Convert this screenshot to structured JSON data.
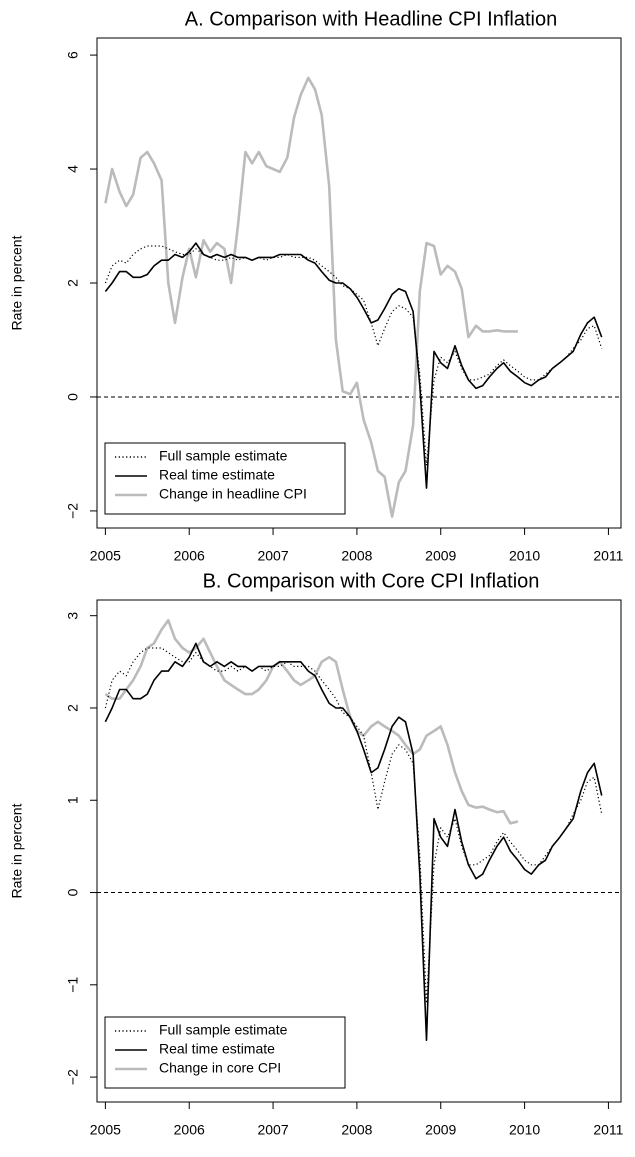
{
  "chart_data": [
    {
      "type": "line",
      "title": "A. Comparison with Headline CPI Inflation",
      "y_label": "Rate in percent",
      "xlim": [
        2004.9,
        2011.15
      ],
      "ylim": [
        -2.3,
        6.3
      ],
      "xticks": [
        2005,
        2006,
        2007,
        2008,
        2009,
        2010,
        2011
      ],
      "yticks": [
        {
          "value": -2,
          "label": "−2"
        },
        0,
        2,
        4,
        6
      ],
      "hline": 0,
      "legend": "bottom-left",
      "x": [
        2005.0,
        2005.08,
        2005.17,
        2005.25,
        2005.33,
        2005.42,
        2005.5,
        2005.58,
        2005.67,
        2005.75,
        2005.83,
        2005.92,
        2006.0,
        2006.08,
        2006.17,
        2006.25,
        2006.33,
        2006.42,
        2006.5,
        2006.58,
        2006.67,
        2006.75,
        2006.83,
        2006.92,
        2007.0,
        2007.08,
        2007.17,
        2007.25,
        2007.33,
        2007.42,
        2007.5,
        2007.58,
        2007.67,
        2007.75,
        2007.83,
        2007.92,
        2008.0,
        2008.08,
        2008.17,
        2008.25,
        2008.33,
        2008.42,
        2008.5,
        2008.58,
        2008.67,
        2008.75,
        2008.83,
        2008.92,
        2009.0,
        2009.08,
        2009.17,
        2009.25,
        2009.33,
        2009.42,
        2009.5,
        2009.58,
        2009.67,
        2009.75,
        2009.83,
        2009.92,
        2010.0,
        2010.08,
        2010.17,
        2010.25,
        2010.33,
        2010.42,
        2010.5,
        2010.58,
        2010.67,
        2010.75,
        2010.83,
        2010.92
      ],
      "series": [
        {
          "name": "Full sample estimate",
          "color": "#000000",
          "linestyle": "dotted",
          "values": [
            2.0,
            2.3,
            2.4,
            2.35,
            2.5,
            2.6,
            2.65,
            2.65,
            2.65,
            2.6,
            2.55,
            2.5,
            2.5,
            2.6,
            2.5,
            2.45,
            2.4,
            2.4,
            2.45,
            2.4,
            2.45,
            2.4,
            2.45,
            2.4,
            2.45,
            2.45,
            2.5,
            2.45,
            2.45,
            2.45,
            2.4,
            2.3,
            2.2,
            2.1,
            1.95,
            1.9,
            1.8,
            1.7,
            1.3,
            0.9,
            1.2,
            1.5,
            1.6,
            1.55,
            1.4,
            0.4,
            -1.2,
            0.3,
            0.7,
            0.6,
            0.8,
            0.5,
            0.3,
            0.3,
            0.35,
            0.4,
            0.55,
            0.65,
            0.55,
            0.45,
            0.35,
            0.3,
            0.3,
            0.4,
            0.5,
            0.6,
            0.7,
            0.85,
            1.0,
            1.2,
            1.25,
            0.85
          ]
        },
        {
          "name": "Real time estimate",
          "color": "#000000",
          "linestyle": "solid",
          "values": [
            1.85,
            2.0,
            2.2,
            2.2,
            2.1,
            2.1,
            2.15,
            2.3,
            2.4,
            2.4,
            2.5,
            2.45,
            2.55,
            2.7,
            2.5,
            2.45,
            2.5,
            2.45,
            2.5,
            2.45,
            2.45,
            2.4,
            2.45,
            2.45,
            2.45,
            2.5,
            2.5,
            2.5,
            2.5,
            2.4,
            2.35,
            2.2,
            2.05,
            2.0,
            2.0,
            1.9,
            1.75,
            1.55,
            1.3,
            1.35,
            1.55,
            1.8,
            1.9,
            1.85,
            1.5,
            0.2,
            -1.6,
            0.8,
            0.6,
            0.5,
            0.9,
            0.55,
            0.3,
            0.15,
            0.2,
            0.35,
            0.5,
            0.6,
            0.45,
            0.35,
            0.25,
            0.2,
            0.3,
            0.35,
            0.5,
            0.6,
            0.7,
            0.8,
            1.1,
            1.3,
            1.4,
            1.05
          ]
        },
        {
          "name": "Change in headline CPI",
          "color": "#bbbbbb",
          "linestyle": "solid",
          "values": [
            3.4,
            4.0,
            3.6,
            3.35,
            3.55,
            4.2,
            4.3,
            4.1,
            3.8,
            2.0,
            1.3,
            2.1,
            2.6,
            2.1,
            2.75,
            2.55,
            2.7,
            2.6,
            2.0,
            3.0,
            4.3,
            4.1,
            4.3,
            4.05,
            4.0,
            3.95,
            4.2,
            4.9,
            5.3,
            5.6,
            5.4,
            4.95,
            3.7,
            1.0,
            0.1,
            0.05,
            0.25,
            -0.4,
            -0.8,
            -1.3,
            -1.4,
            -2.1,
            -1.5,
            -1.3,
            -0.5,
            1.85,
            2.7,
            2.65,
            2.15,
            2.3,
            2.2,
            1.9,
            1.05,
            1.25,
            1.15,
            1.15,
            1.17,
            1.15,
            1.15,
            1.15,
            null,
            null,
            null,
            null,
            null,
            null,
            null,
            null,
            null,
            null,
            null,
            null
          ]
        }
      ]
    },
    {
      "type": "line",
      "title": "B. Comparison with Core CPI Inflation",
      "y_label": "Rate in percent",
      "xlim": [
        2004.9,
        2011.15
      ],
      "ylim": [
        -2.27,
        3.17
      ],
      "xticks": [
        2005,
        2006,
        2007,
        2008,
        2009,
        2010,
        2011
      ],
      "yticks": [
        {
          "value": -2,
          "label": "−2"
        },
        {
          "value": -1,
          "label": "−1"
        },
        0,
        1,
        2,
        3
      ],
      "hline": 0,
      "legend": "bottom-left",
      "x": [
        2005.0,
        2005.08,
        2005.17,
        2005.25,
        2005.33,
        2005.42,
        2005.5,
        2005.58,
        2005.67,
        2005.75,
        2005.83,
        2005.92,
        2006.0,
        2006.08,
        2006.17,
        2006.25,
        2006.33,
        2006.42,
        2006.5,
        2006.58,
        2006.67,
        2006.75,
        2006.83,
        2006.92,
        2007.0,
        2007.08,
        2007.17,
        2007.25,
        2007.33,
        2007.42,
        2007.5,
        2007.58,
        2007.67,
        2007.75,
        2007.83,
        2007.92,
        2008.0,
        2008.08,
        2008.17,
        2008.25,
        2008.33,
        2008.42,
        2008.5,
        2008.58,
        2008.67,
        2008.75,
        2008.83,
        2008.92,
        2009.0,
        2009.08,
        2009.17,
        2009.25,
        2009.33,
        2009.42,
        2009.5,
        2009.58,
        2009.67,
        2009.75,
        2009.83,
        2009.92,
        2010.0,
        2010.08,
        2010.17,
        2010.25,
        2010.33,
        2010.42,
        2010.5,
        2010.58,
        2010.67,
        2010.75,
        2010.83,
        2010.92
      ],
      "series": [
        {
          "name": "Full sample estimate",
          "color": "#000000",
          "linestyle": "dotted",
          "values": [
            2.0,
            2.3,
            2.4,
            2.35,
            2.5,
            2.6,
            2.65,
            2.65,
            2.65,
            2.6,
            2.55,
            2.5,
            2.5,
            2.6,
            2.5,
            2.45,
            2.4,
            2.4,
            2.45,
            2.4,
            2.45,
            2.4,
            2.45,
            2.4,
            2.45,
            2.45,
            2.5,
            2.45,
            2.45,
            2.45,
            2.4,
            2.3,
            2.2,
            2.1,
            1.95,
            1.9,
            1.8,
            1.7,
            1.3,
            0.9,
            1.2,
            1.5,
            1.6,
            1.55,
            1.4,
            0.4,
            -1.2,
            0.3,
            0.7,
            0.6,
            0.8,
            0.5,
            0.3,
            0.3,
            0.35,
            0.4,
            0.55,
            0.65,
            0.55,
            0.45,
            0.35,
            0.3,
            0.3,
            0.4,
            0.5,
            0.6,
            0.7,
            0.85,
            1.0,
            1.2,
            1.25,
            0.85
          ]
        },
        {
          "name": "Real time estimate",
          "color": "#000000",
          "linestyle": "solid",
          "values": [
            1.85,
            2.0,
            2.2,
            2.2,
            2.1,
            2.1,
            2.15,
            2.3,
            2.4,
            2.4,
            2.5,
            2.45,
            2.55,
            2.7,
            2.5,
            2.45,
            2.5,
            2.45,
            2.5,
            2.45,
            2.45,
            2.4,
            2.45,
            2.45,
            2.45,
            2.5,
            2.5,
            2.5,
            2.5,
            2.4,
            2.35,
            2.2,
            2.05,
            2.0,
            2.0,
            1.9,
            1.75,
            1.55,
            1.3,
            1.35,
            1.55,
            1.8,
            1.9,
            1.85,
            1.5,
            0.2,
            -1.6,
            0.8,
            0.6,
            0.5,
            0.9,
            0.55,
            0.3,
            0.15,
            0.2,
            0.35,
            0.5,
            0.6,
            0.45,
            0.35,
            0.25,
            0.2,
            0.3,
            0.35,
            0.5,
            0.6,
            0.7,
            0.8,
            1.1,
            1.3,
            1.4,
            1.05
          ]
        },
        {
          "name": "Change in core CPI",
          "color": "#bbbbbb",
          "linestyle": "solid",
          "values": [
            2.15,
            2.1,
            2.1,
            2.2,
            2.3,
            2.45,
            2.65,
            2.7,
            2.85,
            2.95,
            2.75,
            2.65,
            2.6,
            2.65,
            2.75,
            2.6,
            2.45,
            2.3,
            2.25,
            2.2,
            2.15,
            2.15,
            2.2,
            2.3,
            2.45,
            2.5,
            2.4,
            2.3,
            2.25,
            2.3,
            2.35,
            2.5,
            2.55,
            2.5,
            2.2,
            1.9,
            1.75,
            1.7,
            1.8,
            1.85,
            1.8,
            1.75,
            1.7,
            1.6,
            1.5,
            1.55,
            1.7,
            1.75,
            1.8,
            1.6,
            1.3,
            1.1,
            0.95,
            0.92,
            0.93,
            0.9,
            0.87,
            0.88,
            0.75,
            0.77,
            null,
            null,
            null,
            null,
            null,
            null,
            null,
            null,
            null,
            null,
            null,
            null
          ]
        }
      ]
    }
  ]
}
